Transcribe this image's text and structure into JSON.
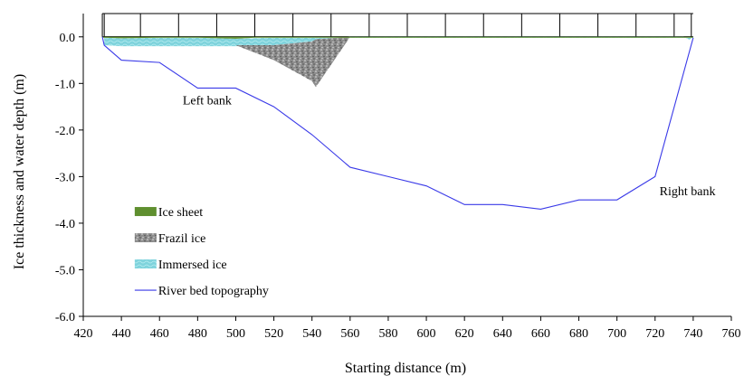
{
  "chart_data": {
    "type": "area",
    "xlabel": "Starting distance (m)",
    "ylabel": "Ice thickness and water depth (m)",
    "xlim": [
      420,
      760
    ],
    "ylim": [
      -6.0,
      0.5
    ],
    "x_ticks": [
      "420",
      "440",
      "460",
      "480",
      "500",
      "520",
      "540",
      "560",
      "580",
      "600",
      "620",
      "640",
      "660",
      "680",
      "700",
      "720",
      "740",
      "760"
    ],
    "y_ticks": [
      "0.0",
      "-1.0",
      "-2.0",
      "-3.0",
      "-4.0",
      "-5.0",
      "-6.0"
    ],
    "grid": "vertical lines above 0.0 only",
    "legend_position": "lower-left",
    "colors": {
      "ice_sheet": "#5f8f2f",
      "frazil_ice": "#9a9a9a",
      "immersed_ice": "#7fd3dc",
      "river_bed": "#3a3ae8"
    },
    "series": [
      {
        "name": "Ice sheet",
        "x": [
          430,
          440,
          460,
          480,
          500,
          510,
          520,
          740
        ],
        "y_top": [
          0,
          0,
          0,
          0,
          0,
          0,
          0,
          0
        ],
        "y_bottom": [
          -0.02,
          -0.03,
          -0.02,
          -0.02,
          -0.04,
          -0.02,
          -0.02,
          -0.02
        ]
      },
      {
        "name": "Frazil ice",
        "x": [
          500,
          520,
          540,
          542,
          560
        ],
        "y_top": [
          -0.18,
          -0.18,
          -0.1,
          -0.05,
          0
        ],
        "y_bottom": [
          -0.18,
          -0.5,
          -0.95,
          -1.08,
          0
        ]
      },
      {
        "name": "Immersed ice",
        "x": [
          431,
          440,
          460,
          480,
          500,
          520,
          540,
          560,
          735,
          738,
          740
        ],
        "y_top": [
          -0.02,
          -0.03,
          -0.02,
          -0.02,
          -0.04,
          -0.02,
          -0.02,
          -0.02,
          -0.02,
          -0.02,
          -0.02
        ],
        "y_bottom": [
          -0.18,
          -0.2,
          -0.2,
          -0.2,
          -0.2,
          -0.18,
          -0.1,
          0,
          0,
          -0.06,
          0
        ]
      },
      {
        "name": "River bed topography",
        "x": [
          430,
          431,
          440,
          460,
          480,
          500,
          520,
          540,
          560,
          580,
          600,
          620,
          640,
          660,
          680,
          700,
          720,
          740
        ],
        "y": [
          0,
          -0.18,
          -0.5,
          -0.55,
          -1.1,
          -1.1,
          -1.5,
          -2.1,
          -2.8,
          -3.0,
          -3.2,
          -3.6,
          -3.6,
          -3.7,
          -3.5,
          -3.5,
          -3.0,
          -0.02
        ]
      }
    ],
    "annotations": [
      {
        "text": "Left bank",
        "x": 485,
        "y": -1.45
      },
      {
        "text": "Right bank",
        "x": 737,
        "y": -3.4
      }
    ],
    "legend": [
      "Ice sheet",
      "Frazil ice",
      "Immersed ice",
      "River bed topography"
    ]
  }
}
